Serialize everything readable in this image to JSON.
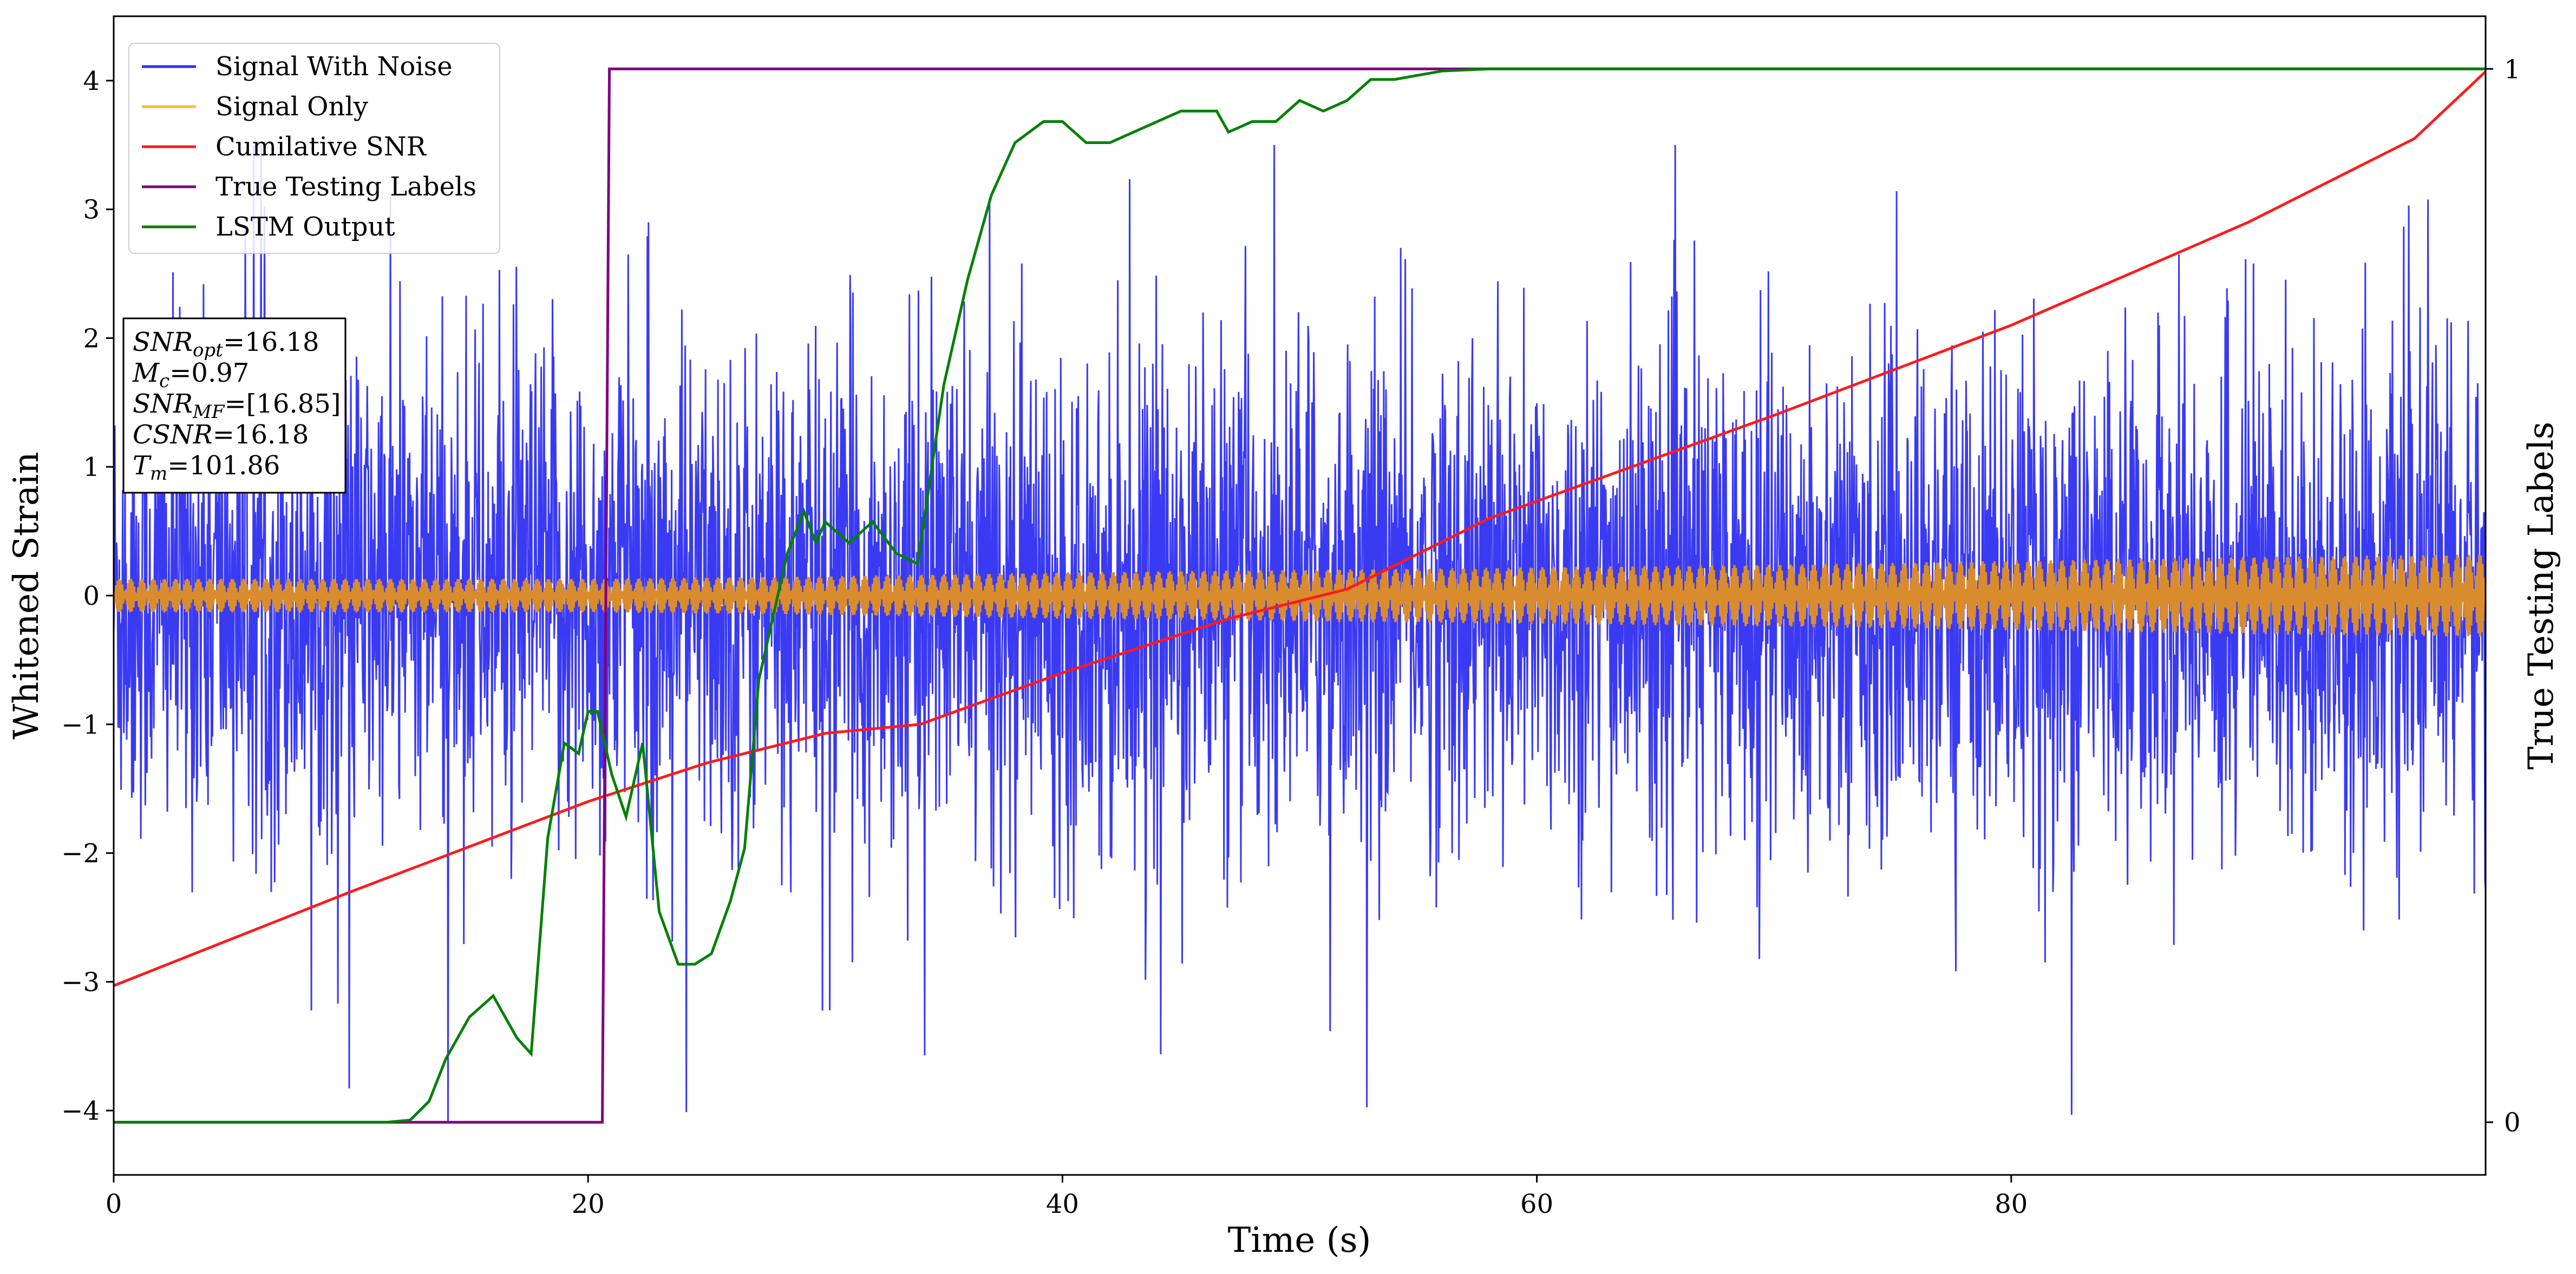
{
  "chart_data": {
    "type": "line",
    "xlabel": "Time (s)",
    "ylabel": "Whitened Strain",
    "y2label": "True Testing Labels",
    "xlim": [
      0,
      100
    ],
    "ylim": [
      -4.5,
      4.5
    ],
    "y2lim": [
      -0.05,
      1.05
    ],
    "x_ticks": [
      0,
      20,
      40,
      60,
      80
    ],
    "y_ticks": [
      -4,
      -3,
      -2,
      -1,
      0,
      1,
      2,
      3,
      4
    ],
    "y2_ticks": [
      0,
      1
    ],
    "legend_position": "upper-left",
    "series": [
      {
        "name": "Signal With Noise",
        "color": "#2f2ff2",
        "axis": "left",
        "style": "noise",
        "typical_range": [
          -1.8,
          1.8
        ],
        "peak_range": [
          -4.1,
          3.5
        ]
      },
      {
        "name": "Signal Only",
        "color": "#d98c2e",
        "legend_color": "#ffb732",
        "axis": "left",
        "style": "band",
        "envelope": {
          "x": [
            0,
            10,
            20,
            30,
            40,
            50,
            60,
            70,
            80,
            90,
            100
          ],
          "half_width": [
            0.13,
            0.13,
            0.13,
            0.15,
            0.18,
            0.2,
            0.22,
            0.24,
            0.27,
            0.3,
            0.32
          ]
        }
      },
      {
        "name": "Cumilative SNR",
        "color": "#ff1a1a",
        "axis": "left",
        "x": [
          0,
          10,
          20,
          25,
          30,
          34,
          40,
          47,
          52,
          58,
          70,
          80,
          90,
          97,
          100
        ],
        "y": [
          -3.03,
          -2.3,
          -1.6,
          -1.3,
          -1.07,
          -1.0,
          -0.6,
          -0.18,
          0.05,
          0.6,
          1.4,
          2.1,
          2.9,
          3.55,
          4.07
        ]
      },
      {
        "name": "True Testing Labels",
        "color": "#800080",
        "axis": "right",
        "x": [
          0,
          20.6,
          20.9,
          100
        ],
        "y": [
          0,
          0,
          1,
          1
        ]
      },
      {
        "name": "LSTM Output",
        "color": "#008000",
        "axis": "right",
        "x": [
          0,
          11.5,
          12.5,
          13.3,
          14,
          15,
          16,
          17,
          17.6,
          18.3,
          19,
          19.6,
          20,
          20.4,
          21,
          21.6,
          22.3,
          23,
          23.8,
          24.5,
          25.2,
          26,
          26.6,
          27.2,
          28.4,
          29.1,
          29.6,
          30,
          31,
          32,
          33,
          33.9,
          35,
          36,
          37,
          38,
          39.2,
          40,
          41,
          42,
          43,
          44,
          45,
          46.5,
          47,
          48,
          49,
          50,
          51,
          52,
          53,
          54,
          56,
          58,
          60,
          100
        ],
        "y": [
          0,
          0,
          0.002,
          0.02,
          0.06,
          0.1,
          0.12,
          0.08,
          0.065,
          0.27,
          0.36,
          0.35,
          0.39,
          0.39,
          0.33,
          0.29,
          0.36,
          0.2,
          0.15,
          0.15,
          0.16,
          0.21,
          0.26,
          0.42,
          0.54,
          0.58,
          0.55,
          0.57,
          0.55,
          0.57,
          0.54,
          0.53,
          0.7,
          0.8,
          0.88,
          0.93,
          0.95,
          0.95,
          0.93,
          0.93,
          0.94,
          0.95,
          0.96,
          0.96,
          0.94,
          0.95,
          0.95,
          0.97,
          0.96,
          0.97,
          0.99,
          0.99,
          0.998,
          1,
          1,
          1
        ]
      }
    ]
  },
  "info_box": {
    "lines": [
      {
        "name": "SNR",
        "sub": "opt",
        "value": "=16.18"
      },
      {
        "name": "M",
        "sub": "c",
        "value": "=0.97"
      },
      {
        "name": "SNR",
        "sub": "MF",
        "value": "=[16.85]"
      },
      {
        "name": "CSNR",
        "sub": "",
        "value": "=16.18"
      },
      {
        "name": "T",
        "sub": "m",
        "value": "=101.86"
      }
    ]
  }
}
